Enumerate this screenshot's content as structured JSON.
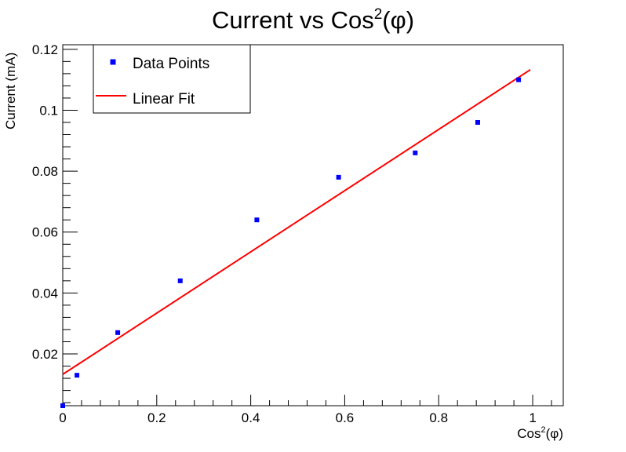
{
  "chart_data": {
    "type": "scatter",
    "title": "Current vs Cos",
    "title_sup": "2",
    "title_tail": "(φ)",
    "xlabel": "Cos",
    "xlabel_sup": "2",
    "xlabel_tail": "(φ)",
    "ylabel": "Current (mA)",
    "xlim": [
      0,
      1.065
    ],
    "ylim": [
      0.003,
      0.1215
    ],
    "x_ticks": [
      0,
      0.2,
      0.4,
      0.6,
      0.8,
      1
    ],
    "x_tick_labels": [
      "0",
      "0.2",
      "0.4",
      "0.6",
      "0.8",
      "1"
    ],
    "y_ticks": [
      0.02,
      0.04,
      0.06,
      0.08,
      0.1,
      0.12
    ],
    "y_tick_labels": [
      "0.02",
      "0.04",
      "0.06",
      "0.08",
      "0.1",
      "0.12"
    ],
    "grid": false,
    "legend_position": "top-left",
    "series": [
      {
        "name": "Data Points",
        "kind": "points",
        "color": "#0000ff",
        "x": [
          0,
          0.0302,
          0.117,
          0.25,
          0.413,
          0.587,
          0.75,
          0.883,
          0.97
        ],
        "y": [
          0.003,
          0.013,
          0.027,
          0.044,
          0.064,
          0.078,
          0.086,
          0.096,
          0.11
        ]
      },
      {
        "name": "Linear Fit",
        "kind": "line",
        "color": "#ff0000",
        "x": [
          0,
          0.995
        ],
        "y": [
          0.0133,
          0.1133
        ]
      }
    ]
  }
}
